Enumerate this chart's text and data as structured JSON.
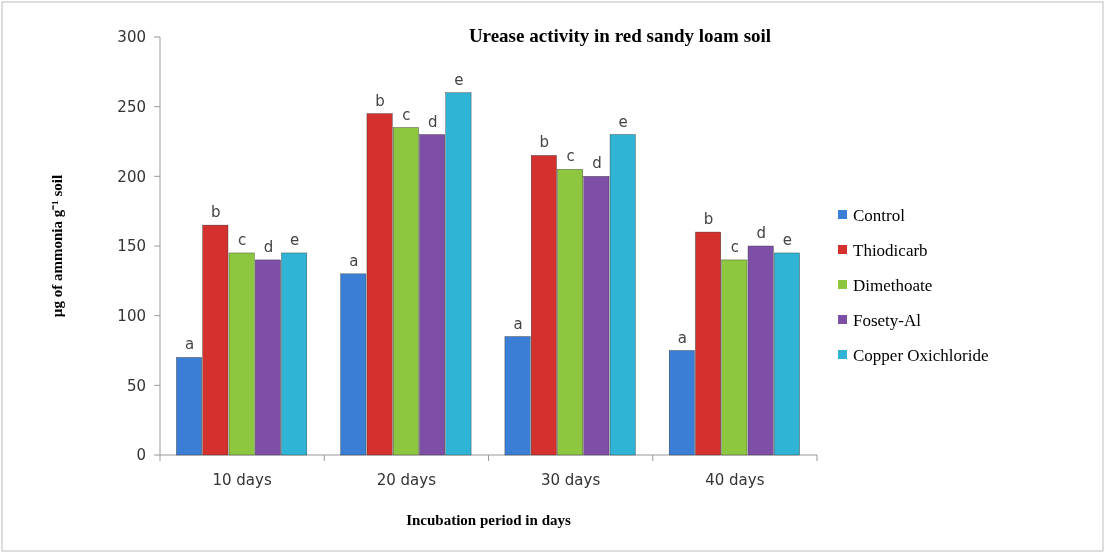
{
  "chart_data": {
    "type": "bar",
    "title": "Urease activity in red sandy loam soil",
    "xlabel": "Incubation period in days",
    "ylabel": "µg of ammonia g⁻¹ soil",
    "categories": [
      "10 days",
      "20 days",
      "30 days",
      "40 days"
    ],
    "series": [
      {
        "name": "Control",
        "color": "#3a7fd5",
        "values": [
          70,
          130,
          85,
          75
        ],
        "value_labels": [
          "a",
          "a",
          "a",
          "a"
        ]
      },
      {
        "name": "Thiodicarb",
        "color": "#d3302e",
        "values": [
          165,
          245,
          215,
          160
        ],
        "value_labels": [
          "b",
          "b",
          "b",
          "b"
        ]
      },
      {
        "name": "Dimethoate",
        "color": "#8dc63f",
        "values": [
          145,
          235,
          205,
          140
        ],
        "value_labels": [
          "c",
          "c",
          "c",
          "c"
        ]
      },
      {
        "name": "Fosety-Al",
        "color": "#7e4fa6",
        "values": [
          140,
          230,
          200,
          150
        ],
        "value_labels": [
          "d",
          "d",
          "d",
          "d"
        ]
      },
      {
        "name": "Copper Oxichloride",
        "color": "#2fb4d6",
        "values": [
          145,
          260,
          230,
          145
        ],
        "value_labels": [
          "e",
          "e",
          "e",
          "e"
        ]
      }
    ],
    "ylim": [
      0,
      300
    ],
    "yticks": [
      0,
      50,
      100,
      150,
      200,
      250,
      300
    ],
    "grid": false,
    "legend": "right"
  }
}
